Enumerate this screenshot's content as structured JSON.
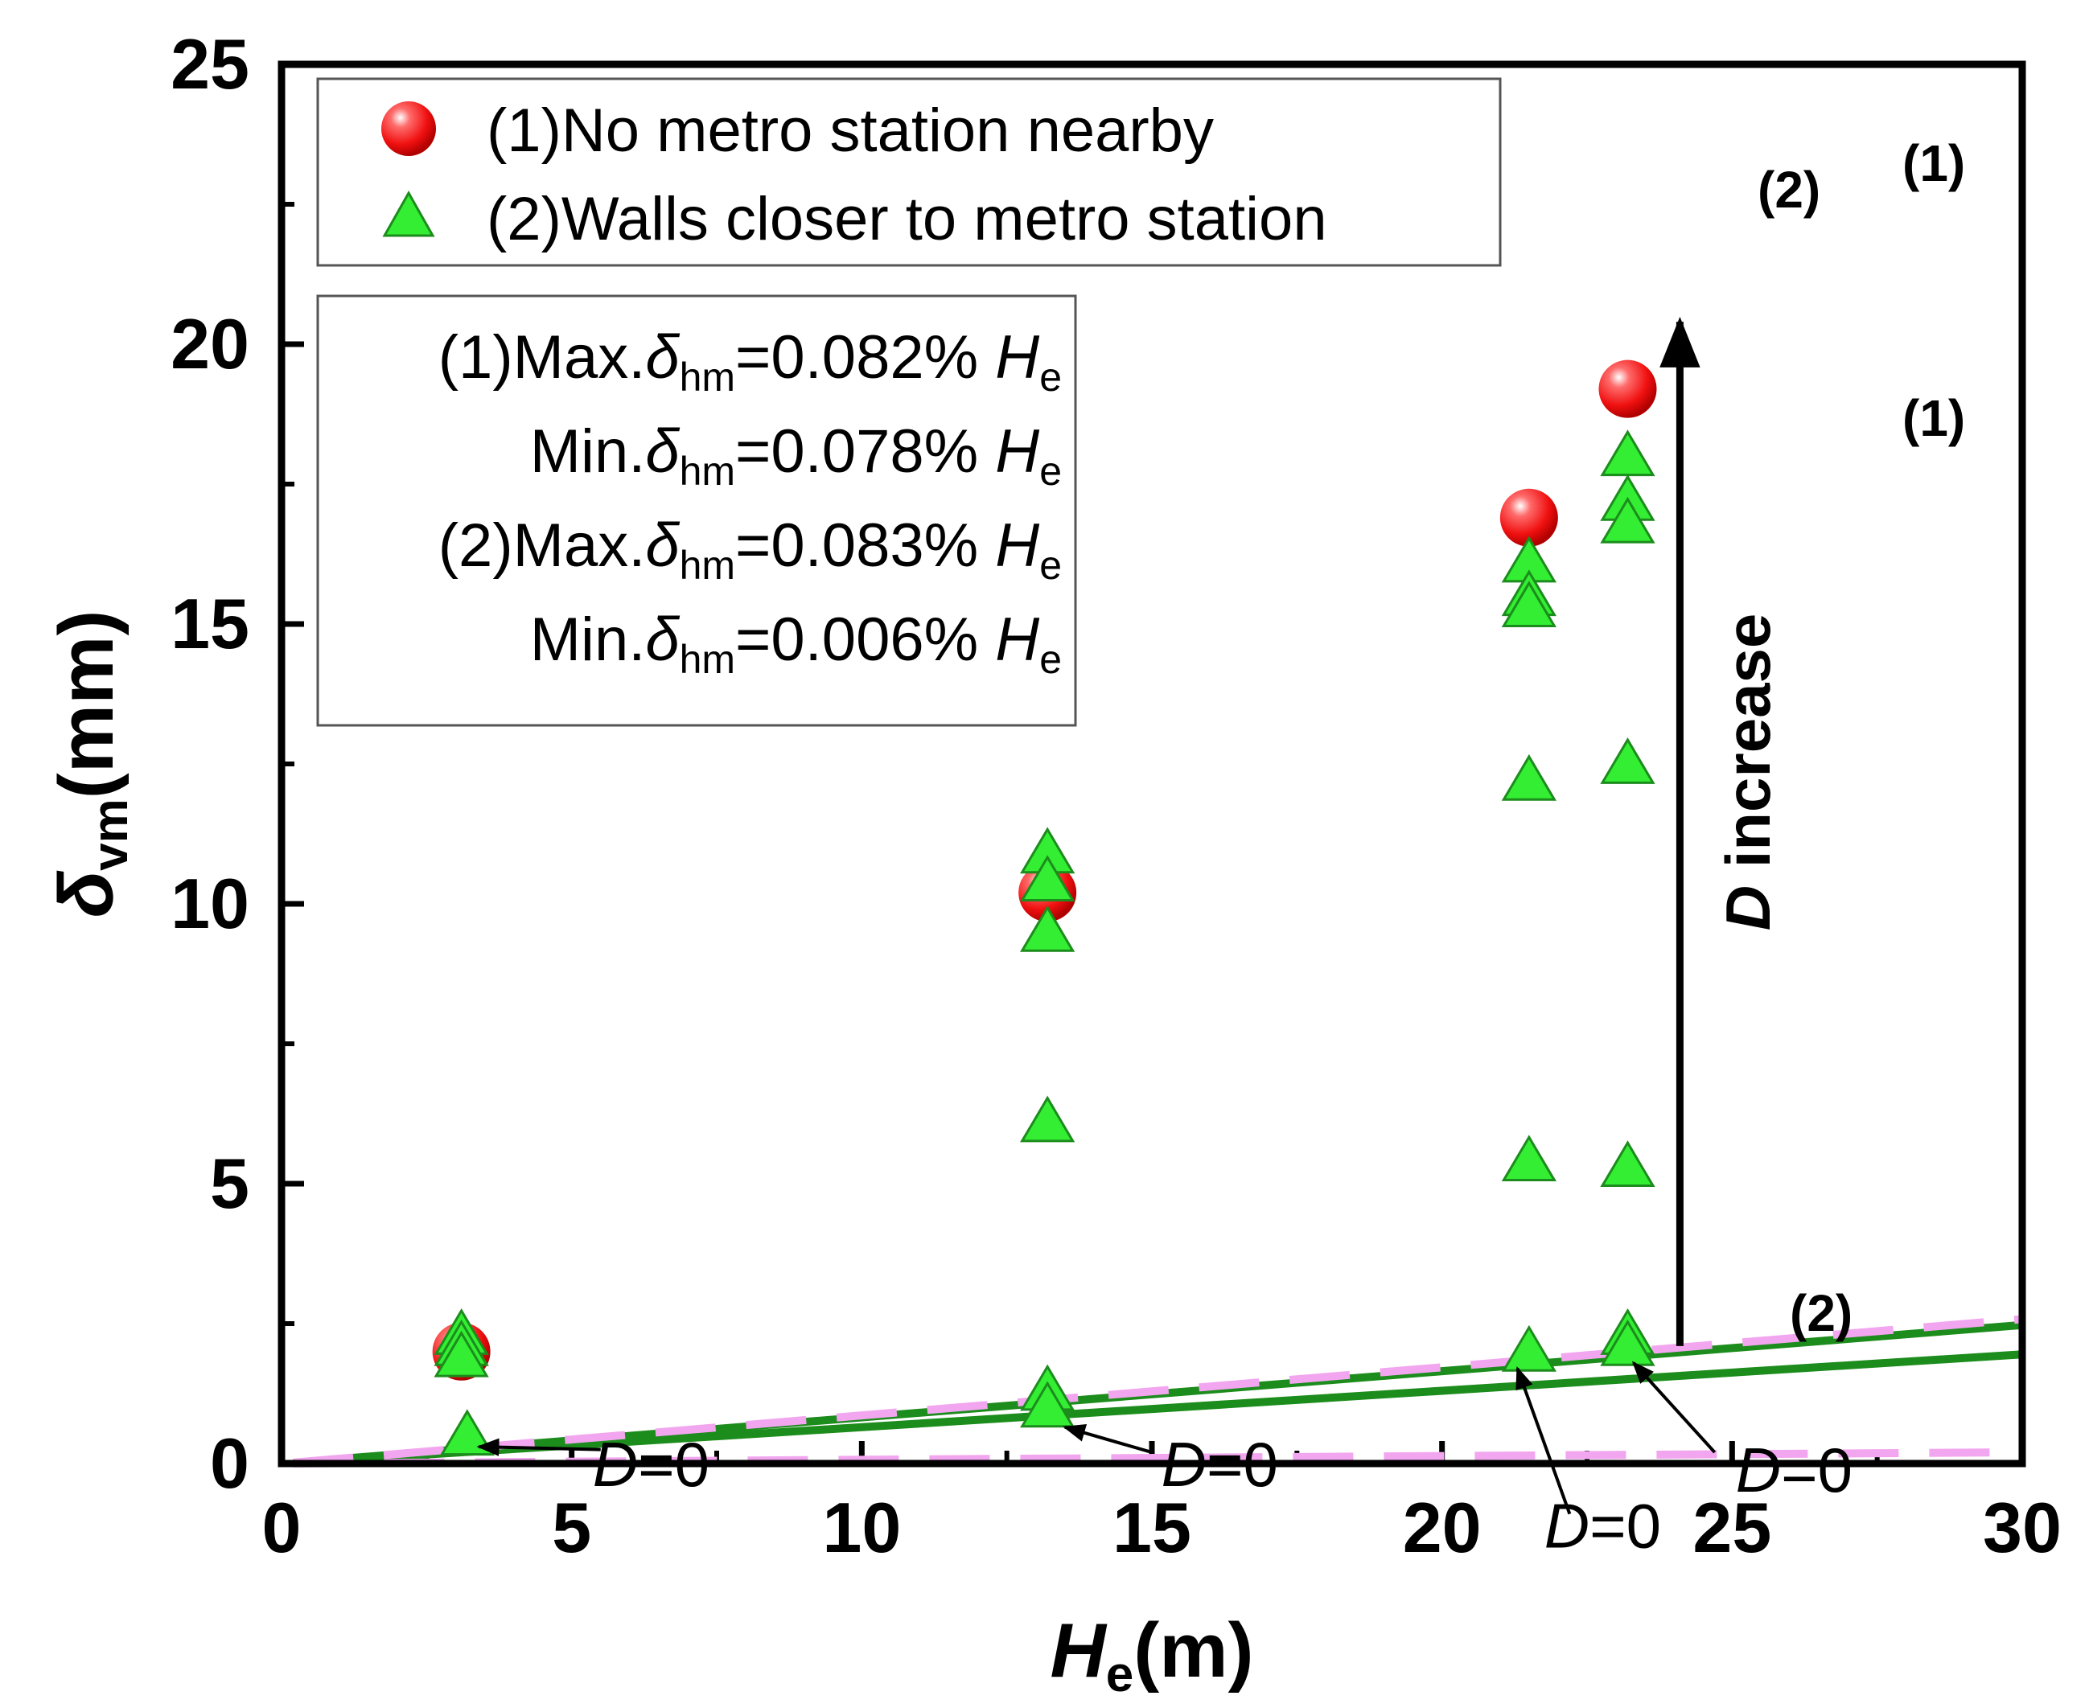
{
  "chart_data": {
    "type": "scatter",
    "xlabel": "He(m)",
    "xlabel_main": "H",
    "xlabel_sub": "e",
    "xlabel_unit": "(m)",
    "ylabel": "δvm(mm)",
    "ylabel_main": "δ",
    "ylabel_sub": "vm",
    "ylabel_unit": "(mm)",
    "xlim": [
      0,
      30
    ],
    "ylim": [
      0,
      25
    ],
    "xticks": [
      "0",
      "5",
      "10",
      "15",
      "20",
      "25",
      "30"
    ],
    "yticks": [
      "0",
      "5",
      "10",
      "15",
      "20",
      "25"
    ],
    "colors": {
      "red": "#ff1a1a",
      "green_marker": "#33ee33",
      "green_line": "#1c8c1c",
      "pink_dash": "#f2a6ef"
    },
    "series": [
      {
        "name": "(1)No metro station nearby",
        "marker": "circle",
        "points": [
          [
            3.1,
            2.0
          ],
          [
            13.2,
            10.2
          ],
          [
            21.5,
            16.9
          ],
          [
            23.2,
            19.2
          ]
        ]
      },
      {
        "name": "(2)Walls closer to metro station",
        "marker": "triangle",
        "points": [
          [
            3.1,
            2.3
          ],
          [
            3.1,
            2.1
          ],
          [
            3.1,
            1.9
          ],
          [
            3.2,
            0.5
          ],
          [
            13.2,
            10.9
          ],
          [
            13.2,
            10.4
          ],
          [
            13.2,
            9.5
          ],
          [
            13.2,
            6.1
          ],
          [
            13.2,
            1.3
          ],
          [
            13.2,
            1.0
          ],
          [
            21.5,
            16.1
          ],
          [
            21.5,
            15.5
          ],
          [
            21.5,
            15.3
          ],
          [
            21.5,
            12.2
          ],
          [
            21.5,
            5.4
          ],
          [
            21.5,
            2.0
          ],
          [
            23.2,
            18.0
          ],
          [
            23.2,
            17.2
          ],
          [
            23.2,
            16.8
          ],
          [
            23.2,
            12.5
          ],
          [
            23.2,
            5.3
          ],
          [
            23.2,
            2.3
          ],
          [
            23.2,
            2.1
          ]
        ]
      }
    ],
    "lines": [
      {
        "name": "(1) upper",
        "style": "solid",
        "slope": 0.0825,
        "label": "(1)"
      },
      {
        "name": "(1) lower",
        "style": "solid",
        "slope": 0.065,
        "label": "(1)"
      },
      {
        "name": "(2) upper",
        "style": "dashed",
        "slope": 0.086,
        "label": "(2)"
      },
      {
        "name": "(2) lower",
        "style": "dashed",
        "slope": 0.0067,
        "label": "(2)"
      }
    ],
    "legend": {
      "placement": "top-left",
      "entries": [
        "(1)No metro station nearby",
        "(2)Walls closer to metro station"
      ]
    },
    "stats_box": {
      "rows": [
        {
          "prefix": "(1)Max.",
          "delta": "δ",
          "sub": "hm",
          "value": "=0.082% ",
          "H": "H",
          "Hsub": "e"
        },
        {
          "prefix": "Min.",
          "delta": "δ",
          "sub": "hm",
          "value": "=0.078% ",
          "H": "H",
          "Hsub": "e"
        },
        {
          "prefix": "(2)Max.",
          "delta": "δ",
          "sub": "hm",
          "value": "=0.083% ",
          "H": "H",
          "Hsub": "e"
        },
        {
          "prefix": "Min.",
          "delta": "δ",
          "sub": "hm",
          "value": "=0.006% ",
          "H": "H",
          "Hsub": "e"
        }
      ]
    },
    "annotations": {
      "d_increase": {
        "italic": "D",
        "text": " increase",
        "from": [
          24.1,
          2.1
        ],
        "to": [
          24.1,
          20.4
        ]
      },
      "d0_labels": [
        {
          "italic": "D",
          "text": "=0",
          "text_at": [
            5.5,
            0.0
          ],
          "arrow_from": [
            5.5,
            0.25
          ],
          "arrow_to": [
            3.4,
            0.3
          ]
        },
        {
          "italic": "D",
          "text": "=0",
          "text_at": [
            15.3,
            0.0
          ],
          "arrow_from": [
            15.0,
            0.2
          ],
          "arrow_to": [
            13.5,
            0.65
          ]
        },
        {
          "italic": "D",
          "text": "=0",
          "text_at": [
            21.9,
            -1.1
          ],
          "arrow_from": [
            22.2,
            -0.9
          ],
          "arrow_to": [
            21.3,
            1.7
          ]
        },
        {
          "italic": "D",
          "text": "=0",
          "text_at": [
            25.2,
            -0.1
          ],
          "arrow_from": [
            24.7,
            0.2
          ],
          "arrow_to": [
            23.3,
            1.8
          ]
        }
      ]
    }
  }
}
